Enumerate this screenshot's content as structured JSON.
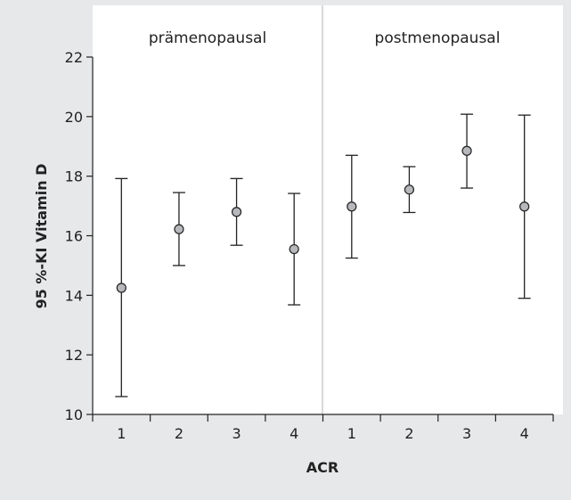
{
  "chart_data": {
    "type": "scatter",
    "error_bars": true,
    "panels": [
      "prämenopausal",
      "postmenopausal"
    ],
    "categories": [
      "1",
      "2",
      "3",
      "4",
      "1",
      "2",
      "3",
      "4"
    ],
    "means": [
      14.25,
      16.22,
      16.8,
      15.55,
      16.98,
      17.55,
      18.85,
      16.98
    ],
    "lower": [
      10.6,
      15.0,
      15.68,
      13.68,
      15.25,
      16.78,
      17.6,
      13.9
    ],
    "upper": [
      17.92,
      17.45,
      17.92,
      17.42,
      18.7,
      18.32,
      20.08,
      20.05
    ],
    "ylabel": "95 %-KI Vitamin D",
    "xlabel": "ACR",
    "ylim": [
      10,
      22
    ],
    "yticks": [
      10,
      12,
      14,
      16,
      18,
      20,
      22
    ],
    "grid": false,
    "colors": {
      "background": "#e7e8e9",
      "plot_area": "#ffffff",
      "marker_fill": "#b6b8bb",
      "line": "#222222",
      "divider": "#dcdcdc"
    }
  }
}
